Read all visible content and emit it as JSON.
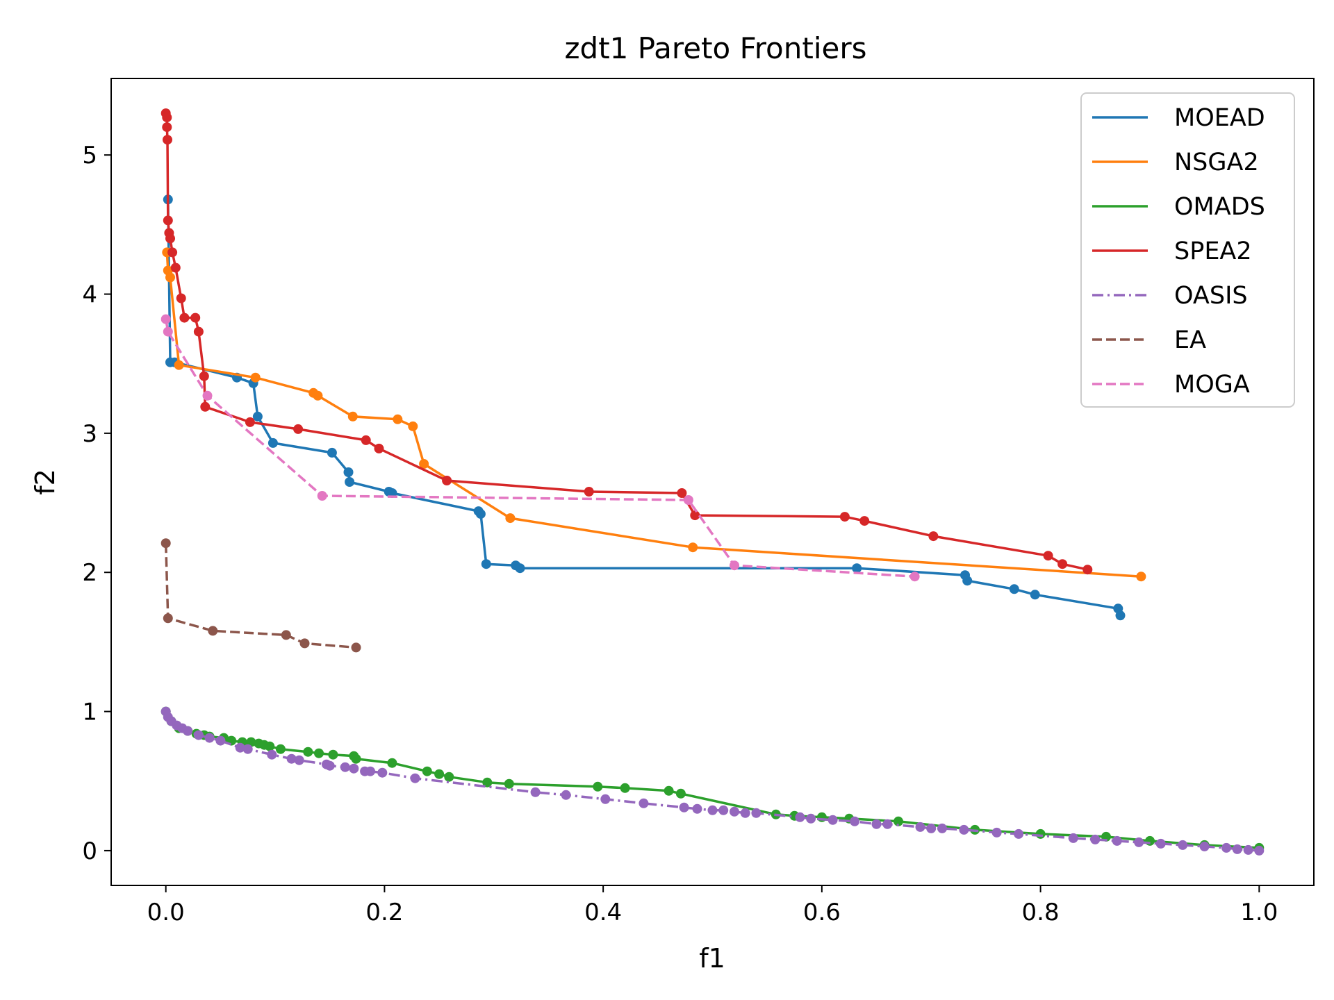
{
  "chart_data": {
    "type": "line",
    "title": "zdt1 Pareto Frontiers",
    "xlabel": "f1",
    "ylabel": "f2",
    "xlim": [
      -0.05,
      1.05
    ],
    "ylim": [
      -0.25,
      5.55
    ],
    "xticks": [
      0.0,
      0.2,
      0.4,
      0.6,
      0.8,
      1.0
    ],
    "xtick_labels": [
      "0.0",
      "0.2",
      "0.4",
      "0.6",
      "0.8",
      "1.0"
    ],
    "yticks": [
      0,
      1,
      2,
      3,
      4,
      5
    ],
    "ytick_labels": [
      "0",
      "1",
      "2",
      "3",
      "4",
      "5"
    ],
    "grid": false,
    "legend_position": "top-right",
    "series": [
      {
        "name": "MOEAD",
        "color": "#1f77b4",
        "dash": "solid",
        "x": [
          0.002,
          0.004,
          0.008,
          0.065,
          0.08,
          0.084,
          0.098,
          0.152,
          0.167,
          0.168,
          0.204,
          0.207,
          0.286,
          0.288,
          0.293,
          0.32,
          0.324,
          0.632,
          0.731,
          0.733,
          0.776,
          0.795,
          0.871,
          0.873
        ],
        "y": [
          4.68,
          3.51,
          3.51,
          3.4,
          3.36,
          3.12,
          2.93,
          2.86,
          2.72,
          2.65,
          2.58,
          2.57,
          2.44,
          2.42,
          2.06,
          2.05,
          2.03,
          2.03,
          1.98,
          1.94,
          1.88,
          1.84,
          1.74,
          1.69
        ]
      },
      {
        "name": "NSGA2",
        "color": "#ff7f0e",
        "dash": "solid",
        "x": [
          0.001,
          0.002,
          0.004,
          0.012,
          0.082,
          0.135,
          0.139,
          0.171,
          0.212,
          0.226,
          0.236,
          0.315,
          0.482,
          0.892
        ],
        "y": [
          4.3,
          4.17,
          4.12,
          3.49,
          3.4,
          3.29,
          3.27,
          3.12,
          3.1,
          3.05,
          2.78,
          2.39,
          2.18,
          1.97
        ]
      },
      {
        "name": "OMADS",
        "color": "#2ca02c",
        "dash": "solid",
        "x": [
          0.0,
          0.005,
          0.012,
          0.02,
          0.028,
          0.035,
          0.04,
          0.053,
          0.06,
          0.07,
          0.078,
          0.085,
          0.09,
          0.095,
          0.105,
          0.13,
          0.14,
          0.153,
          0.172,
          0.174,
          0.207,
          0.239,
          0.25,
          0.259,
          0.294,
          0.314,
          0.395,
          0.42,
          0.46,
          0.471,
          0.558,
          0.575,
          0.6,
          0.625,
          0.67,
          0.74,
          0.8,
          0.86,
          0.9,
          0.95,
          1.0
        ],
        "y": [
          1.0,
          0.93,
          0.88,
          0.86,
          0.84,
          0.83,
          0.82,
          0.81,
          0.79,
          0.78,
          0.78,
          0.77,
          0.76,
          0.75,
          0.73,
          0.71,
          0.7,
          0.69,
          0.68,
          0.66,
          0.63,
          0.57,
          0.55,
          0.53,
          0.49,
          0.48,
          0.46,
          0.45,
          0.43,
          0.41,
          0.26,
          0.25,
          0.24,
          0.23,
          0.21,
          0.15,
          0.12,
          0.1,
          0.07,
          0.04,
          0.02
        ]
      },
      {
        "name": "SPEA2",
        "color": "#d62728",
        "dash": "solid",
        "x": [
          0.0,
          0.001,
          0.001,
          0.0015,
          0.002,
          0.003,
          0.004,
          0.006,
          0.009,
          0.014,
          0.017,
          0.027,
          0.03,
          0.035,
          0.036,
          0.077,
          0.121,
          0.183,
          0.195,
          0.257,
          0.387,
          0.472,
          0.484,
          0.621,
          0.639,
          0.702,
          0.807,
          0.82,
          0.843
        ],
        "y": [
          5.3,
          5.27,
          5.2,
          5.11,
          4.53,
          4.44,
          4.4,
          4.3,
          4.19,
          3.97,
          3.83,
          3.83,
          3.73,
          3.41,
          3.19,
          3.08,
          3.03,
          2.95,
          2.89,
          2.66,
          2.58,
          2.57,
          2.41,
          2.4,
          2.37,
          2.26,
          2.12,
          2.06,
          2.02
        ]
      },
      {
        "name": "OASIS",
        "color": "#9467bd",
        "dash": "dashdot",
        "x": [
          0.0,
          0.002,
          0.005,
          0.01,
          0.015,
          0.02,
          0.03,
          0.04,
          0.05,
          0.068,
          0.075,
          0.097,
          0.115,
          0.122,
          0.147,
          0.15,
          0.164,
          0.172,
          0.182,
          0.187,
          0.198,
          0.228,
          0.338,
          0.366,
          0.402,
          0.437,
          0.474,
          0.486,
          0.5,
          0.51,
          0.52,
          0.53,
          0.54,
          0.58,
          0.59,
          0.61,
          0.63,
          0.65,
          0.66,
          0.69,
          0.7,
          0.71,
          0.73,
          0.76,
          0.78,
          0.83,
          0.85,
          0.87,
          0.89,
          0.91,
          0.93,
          0.95,
          0.97,
          0.98,
          0.99,
          1.0
        ],
        "y": [
          1.0,
          0.96,
          0.93,
          0.9,
          0.88,
          0.86,
          0.83,
          0.81,
          0.79,
          0.74,
          0.73,
          0.69,
          0.66,
          0.65,
          0.62,
          0.61,
          0.6,
          0.59,
          0.57,
          0.57,
          0.56,
          0.52,
          0.42,
          0.4,
          0.37,
          0.34,
          0.31,
          0.3,
          0.29,
          0.29,
          0.28,
          0.27,
          0.27,
          0.24,
          0.23,
          0.22,
          0.21,
          0.19,
          0.19,
          0.17,
          0.16,
          0.16,
          0.15,
          0.13,
          0.12,
          0.09,
          0.08,
          0.07,
          0.06,
          0.05,
          0.04,
          0.03,
          0.02,
          0.01,
          0.005,
          0.0
        ]
      },
      {
        "name": "EA",
        "color": "#8c564b",
        "dash": "dashed",
        "x": [
          0.0,
          0.002,
          0.043,
          0.11,
          0.127,
          0.174
        ],
        "y": [
          2.21,
          1.67,
          1.58,
          1.55,
          1.49,
          1.46
        ]
      },
      {
        "name": "MOGA",
        "color": "#e377c2",
        "dash": "dashed",
        "x": [
          0.0,
          0.002,
          0.038,
          0.143,
          0.478,
          0.52,
          0.685
        ],
        "y": [
          3.82,
          3.73,
          3.27,
          2.55,
          2.52,
          2.05,
          1.97
        ]
      }
    ]
  }
}
